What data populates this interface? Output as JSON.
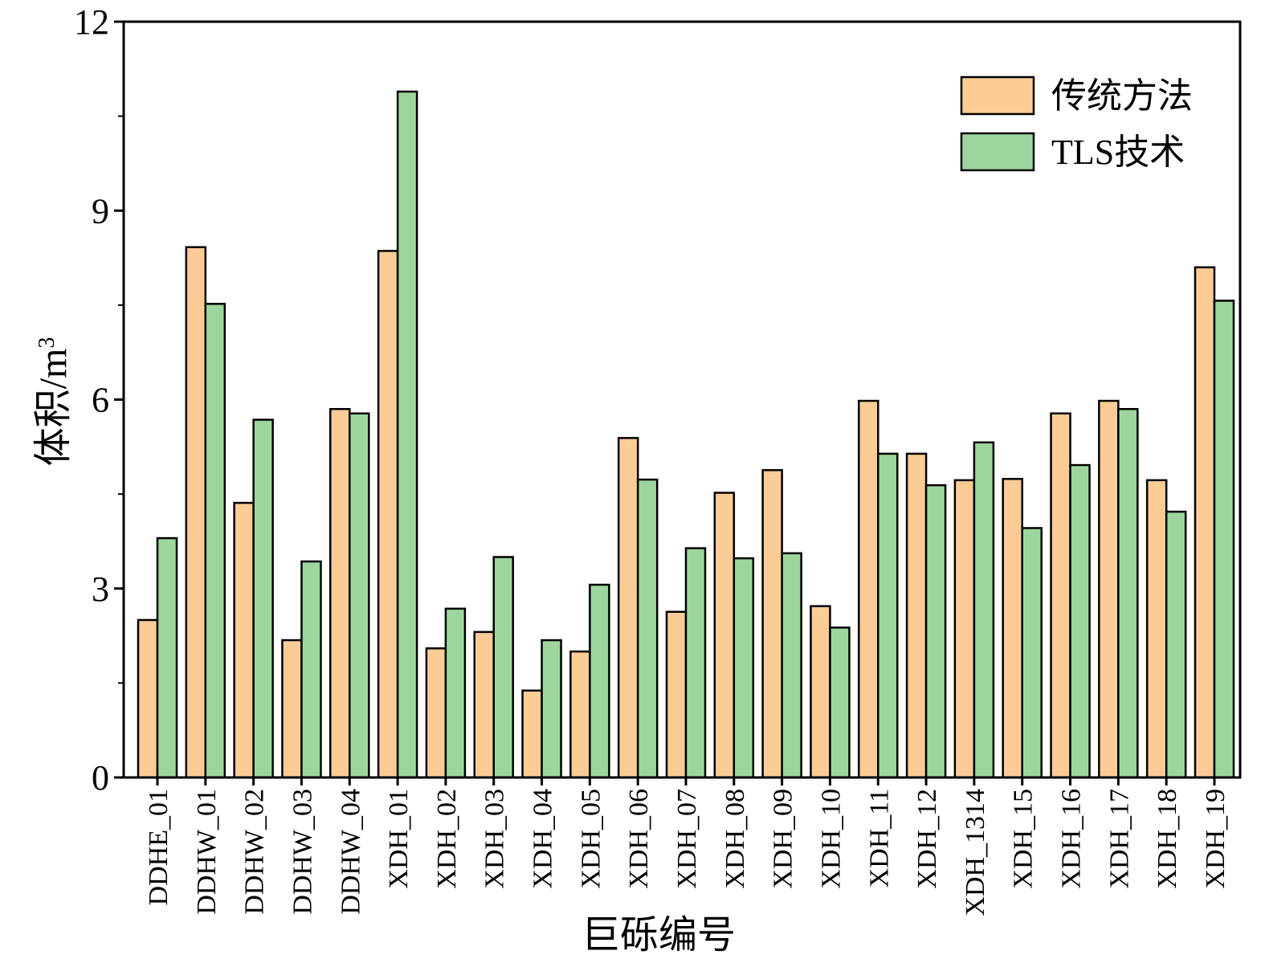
{
  "chart_data": {
    "type": "bar",
    "xlabel": "巨砾编号",
    "ylabel_main": "体积/m",
    "ylabel_sup": "3",
    "ylim": [
      0,
      12
    ],
    "yticks": [
      0,
      3,
      6,
      9,
      12
    ],
    "grid": false,
    "legend_position": "top-right",
    "categories": [
      "DDHE_01",
      "DDHW_01",
      "DDHW_02",
      "DDHW_03",
      "DDHW_04",
      "XDH_01",
      "XDH_02",
      "XDH_03",
      "XDH_04",
      "XDH_05",
      "XDH_06",
      "XDH_07",
      "XDH_08",
      "XDH_09",
      "XDH_10",
      "XDH_11",
      "XDH_12",
      "XDH_1314",
      "XDH_15",
      "XDH_16",
      "XDH_17",
      "XDH_18",
      "XDH_19"
    ],
    "series": [
      {
        "name": "传统方法",
        "color": "#FDCC95",
        "values": [
          2.5,
          8.42,
          4.36,
          2.18,
          5.85,
          8.36,
          2.05,
          2.31,
          1.38,
          2.0,
          5.39,
          2.63,
          4.52,
          4.88,
          2.72,
          5.98,
          5.14,
          4.72,
          4.74,
          5.78,
          5.98,
          4.72,
          8.1
        ]
      },
      {
        "name": "TLS技术",
        "color": "#9DD69D",
        "values": [
          3.8,
          7.52,
          5.68,
          3.43,
          5.78,
          10.89,
          2.68,
          3.5,
          2.18,
          3.06,
          4.73,
          3.64,
          3.48,
          3.56,
          2.38,
          5.14,
          4.64,
          5.32,
          3.96,
          4.96,
          5.85,
          4.22,
          7.57
        ]
      }
    ]
  }
}
